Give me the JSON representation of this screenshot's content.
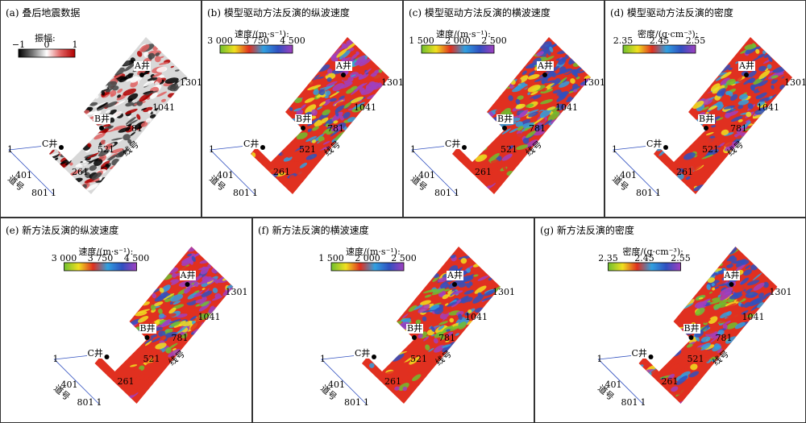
{
  "panels": [
    {
      "title": "(a) 叠后地震数据",
      "colorbar_label": "振幅:",
      "ticks": [
        "−1",
        "0",
        "1"
      ],
      "colors": [
        "#000000",
        "#777777",
        "#ffffff",
        "#e06060",
        "#b00000"
      ]
    },
    {
      "title": "(b) 模型驱动方法反演的纵波速度",
      "colorbar_label": "速度/(m·s⁻¹):",
      "ticks": [
        "3 000",
        "3 750",
        "4 500"
      ],
      "colors": [
        "#6fbf2f",
        "#f0e020",
        "#e03020",
        "#30a0e0",
        "#3050c0",
        "#a040c0"
      ]
    },
    {
      "title": "(c) 模型驱动方法反演的横波速度",
      "colorbar_label": "速度/(m·s⁻¹):",
      "ticks": [
        "1 500",
        "2 000",
        "2 500"
      ],
      "colors": [
        "#6fbf2f",
        "#f0e020",
        "#e03020",
        "#30a0e0",
        "#3050c0",
        "#a040c0"
      ]
    },
    {
      "title": "(d) 模型驱动方法反演的密度",
      "colorbar_label": "密度/(g·cm⁻³):",
      "ticks": [
        "2.35",
        "2.45",
        "2.55"
      ],
      "colors": [
        "#6fbf2f",
        "#f0e020",
        "#e03020",
        "#30a0e0",
        "#3050c0",
        "#a040c0"
      ]
    },
    {
      "title": "(e) 新方法反演的纵波速度",
      "colorbar_label": "速度/(m·s⁻¹):",
      "ticks": [
        "3 000",
        "3 750",
        "4 500"
      ],
      "colors": [
        "#6fbf2f",
        "#f0e020",
        "#e03020",
        "#30a0e0",
        "#3050c0",
        "#a040c0"
      ]
    },
    {
      "title": "(f) 新方法反演的横波速度",
      "colorbar_label": "速度/(m·s⁻¹):",
      "ticks": [
        "1 500",
        "2 000",
        "2 500"
      ],
      "colors": [
        "#6fbf2f",
        "#f0e020",
        "#e03020",
        "#30a0e0",
        "#3050c0",
        "#a040c0"
      ]
    },
    {
      "title": "(g) 新方法反演的密度",
      "colorbar_label": "密度/(g·cm⁻³):",
      "ticks": [
        "2.35",
        "2.45",
        "2.55"
      ],
      "colors": [
        "#6fbf2f",
        "#f0e020",
        "#e03020",
        "#30a0e0",
        "#3050c0",
        "#a040c0"
      ]
    }
  ],
  "map_labels": {
    "well_a": "A井",
    "well_b": "B井",
    "well_c": "C井",
    "line_1301": "1301",
    "line_1041": "1041",
    "line_781": "781",
    "line_521": "521",
    "line_261": "261",
    "trace_1": "1",
    "trace_401": "401",
    "trace_801": "801",
    "corner_1": "1",
    "line_axis": "线号",
    "trace_axis": "道号"
  }
}
